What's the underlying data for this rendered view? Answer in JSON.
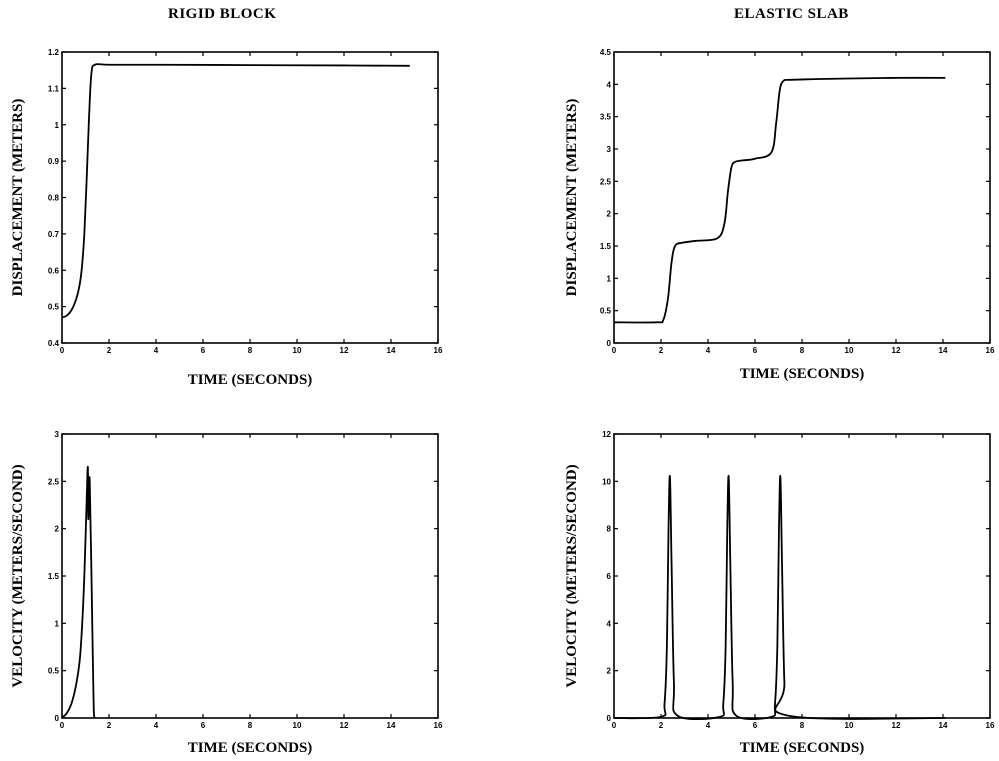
{
  "column_titles": {
    "left": "RIGID BLOCK",
    "right": "ELASTIC SLAB"
  },
  "chart_data": [
    {
      "id": "rigid-displacement",
      "type": "line",
      "title": "RIGID BLOCK",
      "xlabel": "TIME (SECONDS)",
      "ylabel": "DISPLACEMENT (METERS)",
      "xlim": [
        0,
        16
      ],
      "ylim": [
        0.4,
        1.2
      ],
      "xticks": [
        0,
        2,
        4,
        6,
        8,
        10,
        12,
        14,
        16
      ],
      "yticks": [
        0.4,
        0.5,
        0.6,
        0.7,
        0.8,
        0.9,
        1,
        1.1,
        1.2
      ],
      "ytick_labels": [
        "0.4",
        "0.5",
        "0.6",
        "0.7",
        "0.8",
        "0.9",
        "1",
        "1.1",
        "1.2"
      ],
      "series": [
        {
          "x": [
            0,
            0.2,
            0.4,
            0.6,
            0.75,
            0.85,
            0.95,
            1.05,
            1.15,
            1.25,
            1.4,
            2,
            4,
            8,
            12,
            14.8
          ],
          "y": [
            0.47,
            0.475,
            0.49,
            0.52,
            0.56,
            0.61,
            0.7,
            0.85,
            1.02,
            1.14,
            1.165,
            1.165,
            1.165,
            1.164,
            1.163,
            1.162
          ]
        }
      ]
    },
    {
      "id": "elastic-displacement",
      "type": "line",
      "title": "ELASTIC SLAB",
      "xlabel": "TIME (SECONDS)",
      "ylabel": "DISPLACEMENT (METERS)",
      "xlim": [
        0,
        16
      ],
      "ylim": [
        0,
        4.5
      ],
      "xticks": [
        0,
        2,
        4,
        6,
        8,
        10,
        12,
        14,
        16
      ],
      "yticks": [
        0,
        0.5,
        1,
        1.5,
        2,
        2.5,
        3,
        3.5,
        4,
        4.5
      ],
      "ytick_labels": [
        "0",
        "0.5",
        "1",
        "1.5",
        "2",
        "2.5",
        "3",
        "3.5",
        "4",
        "4.5"
      ],
      "series": [
        {
          "x": [
            0,
            1.8,
            2.1,
            2.3,
            2.45,
            2.6,
            2.9,
            3.5,
            4.4,
            4.7,
            4.85,
            5.0,
            5.15,
            5.4,
            6.0,
            6.7,
            6.9,
            7.05,
            7.2,
            7.5,
            8.5,
            10,
            12,
            14.1
          ],
          "y": [
            0.32,
            0.32,
            0.36,
            0.7,
            1.25,
            1.5,
            1.55,
            1.58,
            1.62,
            1.85,
            2.35,
            2.72,
            2.8,
            2.82,
            2.85,
            2.95,
            3.4,
            3.9,
            4.05,
            4.07,
            4.08,
            4.09,
            4.1,
            4.1
          ]
        }
      ]
    },
    {
      "id": "rigid-velocity",
      "type": "line",
      "title": "",
      "xlabel": "TIME (SECONDS)",
      "ylabel": "VELOCITY (METERS/SECOND)",
      "xlim": [
        0,
        16
      ],
      "ylim": [
        0,
        3
      ],
      "xticks": [
        0,
        2,
        4,
        6,
        8,
        10,
        12,
        14,
        16
      ],
      "yticks": [
        0,
        0.5,
        1,
        1.5,
        2,
        2.5,
        3
      ],
      "ytick_labels": [
        "0",
        "0.5",
        "1",
        "1.5",
        "2",
        "2.5",
        "3"
      ],
      "series": [
        {
          "x": [
            0,
            0.2,
            0.4,
            0.6,
            0.75,
            0.85,
            0.95,
            1.05,
            1.1,
            1.12,
            1.18,
            1.3,
            1.35,
            1.4
          ],
          "y": [
            0,
            0.05,
            0.15,
            0.35,
            0.6,
            0.95,
            1.5,
            2.3,
            2.65,
            2.1,
            2.5,
            0.8,
            0.1,
            0
          ]
        }
      ]
    },
    {
      "id": "elastic-velocity",
      "type": "line",
      "title": "",
      "xlabel": "TIME (SECONDS)",
      "ylabel": "VELOCITY (METERS/SECOND)",
      "xlim": [
        0,
        16
      ],
      "ylim": [
        0,
        12
      ],
      "xticks": [
        0,
        2,
        4,
        6,
        8,
        10,
        12,
        14,
        16
      ],
      "yticks": [
        0,
        2,
        4,
        6,
        8,
        10,
        12
      ],
      "ytick_labels": [
        "0",
        "2",
        "4",
        "6",
        "8",
        "10",
        "12"
      ],
      "series": [
        {
          "x": [
            0,
            2.0,
            2.15,
            2.25,
            2.32,
            2.38,
            2.45,
            2.55,
            2.7,
            4.5,
            4.65,
            4.75,
            4.82,
            4.88,
            4.95,
            5.05,
            5.2,
            6.7,
            6.85,
            6.95,
            7.02,
            7.08,
            7.15,
            7.25,
            7.4,
            14.1
          ],
          "y": [
            0,
            0.05,
            0.6,
            3.0,
            8.0,
            10.2,
            6.5,
            1.5,
            0.1,
            0.05,
            0.6,
            3.0,
            8.0,
            10.2,
            6.5,
            1.5,
            0.1,
            0.05,
            0.6,
            3.0,
            8.0,
            10.2,
            6.5,
            1.5,
            0.1,
            0
          ]
        }
      ]
    }
  ]
}
